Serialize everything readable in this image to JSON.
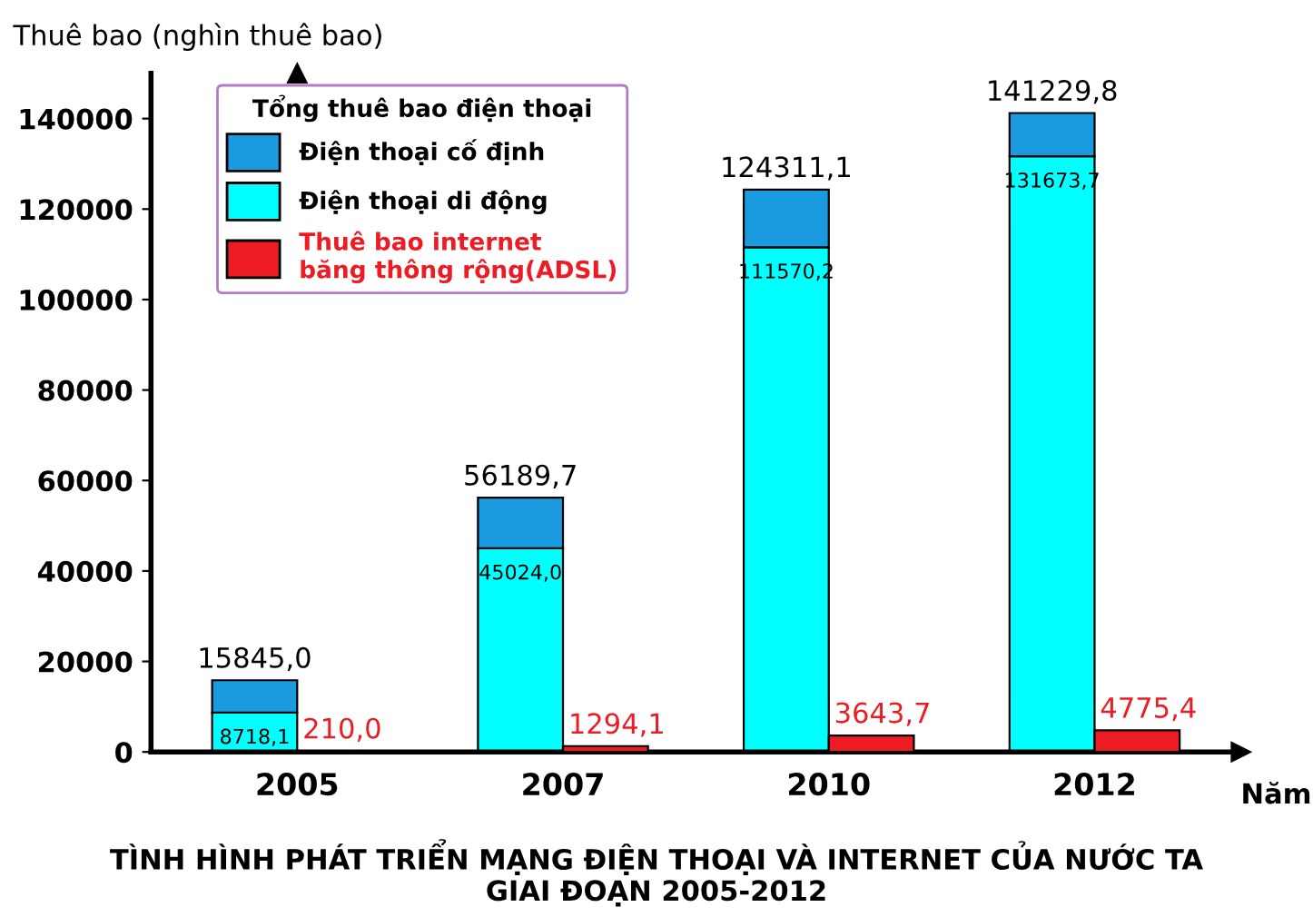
{
  "chart_data": {
    "type": "bar",
    "title": "TÌNH HÌNH PHÁT TRIỂN MẠNG ĐIỆN THOẠI VÀ INTERNET CỦA NƯỚC TA\nGIAI ĐOẠN 2005-2012",
    "ylabel": "Thuê bao (nghìn thuê bao)",
    "xlabel": "Năm",
    "legend_title": "Tổng thuê bao điện thoại",
    "categories": [
      "2005",
      "2007",
      "2010",
      "2012"
    ],
    "stacked": true,
    "totals": [
      "15845,0",
      "56189,7",
      "124311,1",
      "141229,8"
    ],
    "series": [
      {
        "name": "Điện thoại di động",
        "color": "#00ffff",
        "values": [
          8718.1,
          45024.0,
          111570.2,
          131673.7
        ],
        "value_labels": [
          "8718,1",
          "45024,0",
          "111570,2",
          "131673,7"
        ]
      },
      {
        "name": "Điện thoại cố định",
        "color": "#1a9be0",
        "values": [
          7126.9,
          11165.7,
          12740.9,
          9556.1
        ]
      },
      {
        "name": "Thuê bao internet băng thông rộng(ADSL)",
        "color": "#ed1c24",
        "axis": "y2",
        "values": [
          210.0,
          1294.1,
          3643.7,
          4775.4
        ],
        "value_labels": [
          "210,0",
          "1294,1",
          "3643,7",
          "4775,4"
        ]
      }
    ],
    "ylim": [
      0,
      150000
    ],
    "yticks": [
      0,
      20000,
      40000,
      60000,
      80000,
      100000,
      120000,
      140000
    ],
    "grid": false,
    "legend": "top left"
  }
}
